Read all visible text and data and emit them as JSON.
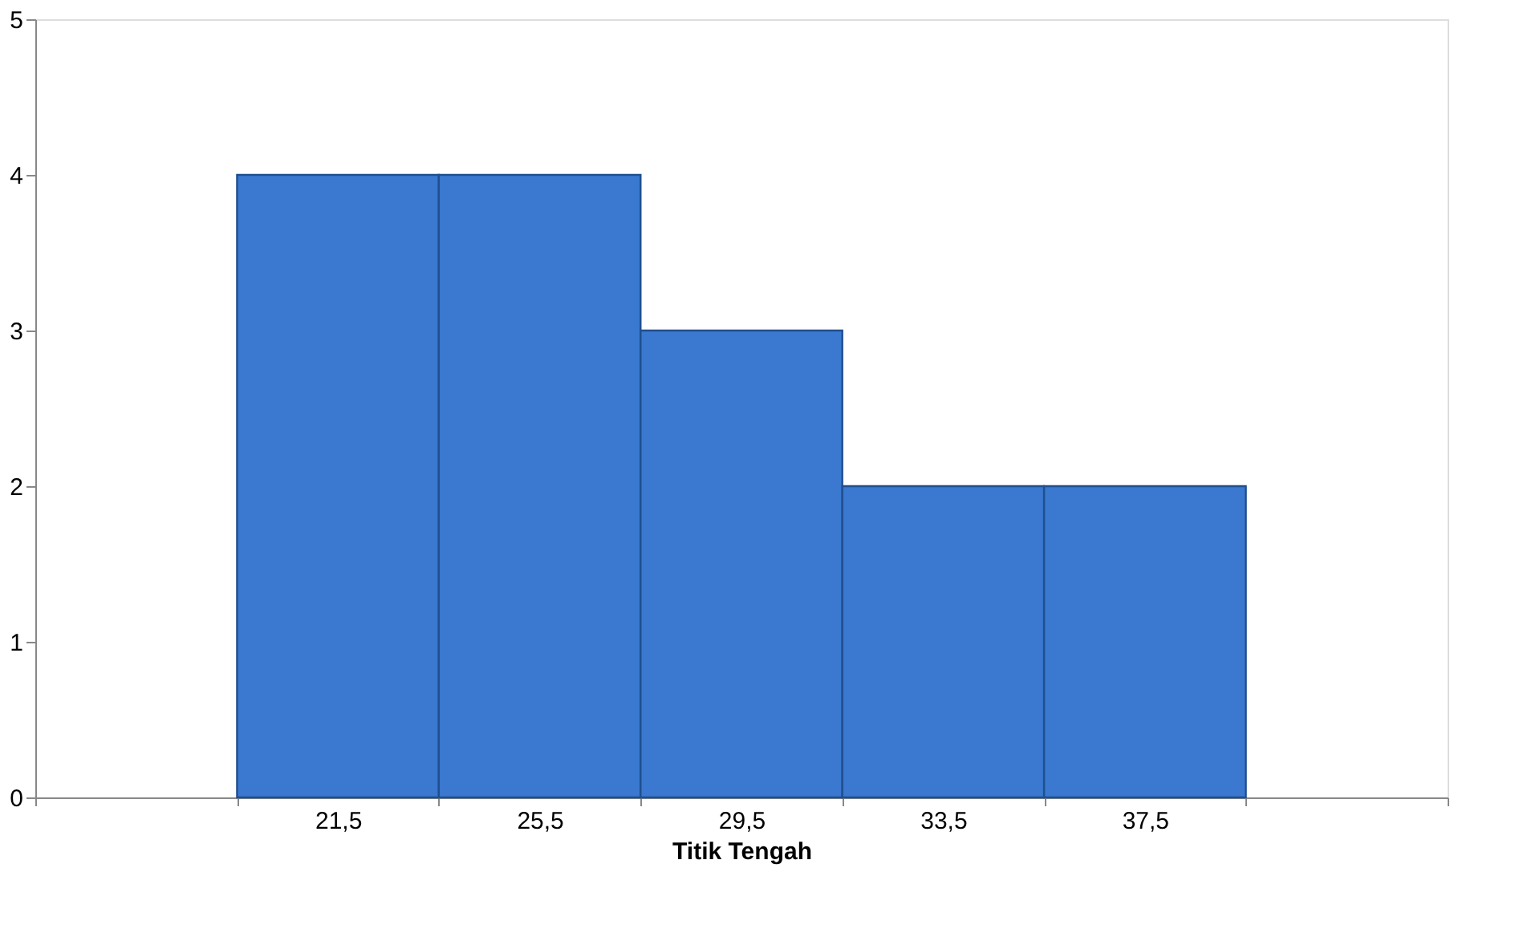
{
  "chart_data": {
    "type": "bar",
    "xlabel": "Titik Tengah",
    "categories": [
      null,
      "21,5",
      "25,5",
      "29,5",
      "33,5",
      "37,5",
      null
    ],
    "values": [
      null,
      4,
      4,
      3,
      2,
      2,
      null
    ],
    "color": "#3a79cf",
    "ylim": [
      0,
      5
    ],
    "yticks": [
      0,
      1,
      2,
      3,
      4,
      5
    ],
    "grid": false
  }
}
